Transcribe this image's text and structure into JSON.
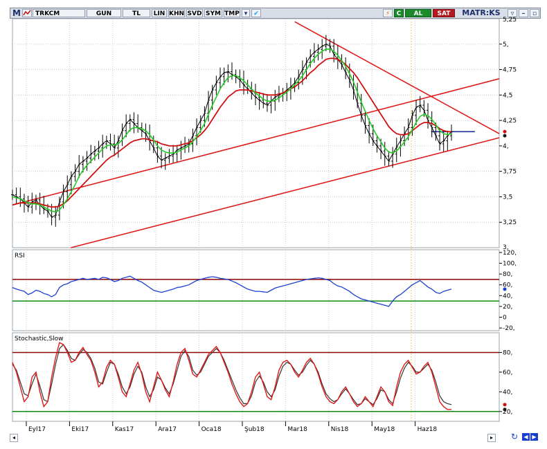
{
  "toolbar": {
    "logo": "M",
    "symbol": "TRKCM",
    "period": "GUN",
    "currency": "TL",
    "scale_lin": "LIN",
    "khn": "KHN",
    "svd": "SVD",
    "sym": "SYM",
    "tmp": "TMP",
    "c_label": "C",
    "buy": "AL",
    "sell": "SAT",
    "brand": "MATR:KS"
  },
  "panels": {
    "rsi_label": "RSI",
    "stoch_label": "Stochastic,Slow"
  },
  "colors": {
    "price": "#000000",
    "ma_fast": "#22cc22",
    "ma_slow": "#d01010",
    "trend": "#e01a1a",
    "rsi": "#1a3fd0",
    "level_high": "#8b0000",
    "level_low": "#118a11",
    "stoch_k": "#e01a1a",
    "stoch_d": "#333333",
    "grid": "#c8c8c8"
  },
  "chart_data": [
    {
      "type": "line",
      "ylim": [
        3.0,
        5.25
      ],
      "y_ticks": [
        "5,",
        "4,75",
        "4,5",
        "4,25",
        "4,",
        "3,75",
        "3,5",
        "3,25"
      ],
      "y_top_partial": "5,25",
      "y_bottom_partial": "3,",
      "x_labels": [
        "Eyl17",
        "Eki17",
        "Kas17",
        "Ara17",
        "Oca18",
        "Şub18",
        "Mar18",
        "Nis18",
        "May18",
        "Haz18"
      ],
      "close_series": [
        3.52,
        3.5,
        3.48,
        3.44,
        3.4,
        3.45,
        3.47,
        3.42,
        3.38,
        3.36,
        3.3,
        3.32,
        3.45,
        3.55,
        3.62,
        3.7,
        3.75,
        3.82,
        3.85,
        3.88,
        3.92,
        3.95,
        3.98,
        4.02,
        4.05,
        4.02,
        3.98,
        4.05,
        4.15,
        4.22,
        4.26,
        4.22,
        4.18,
        4.15,
        4.12,
        4.05,
        3.98,
        3.9,
        3.86,
        3.88,
        3.9,
        3.92,
        3.96,
        3.98,
        4.0,
        4.02,
        4.1,
        4.18,
        4.25,
        4.32,
        4.45,
        4.55,
        4.62,
        4.68,
        4.72,
        4.73,
        4.7,
        4.68,
        4.65,
        4.6,
        4.56,
        4.52,
        4.48,
        4.45,
        4.42,
        4.4,
        4.44,
        4.48,
        4.5,
        4.52,
        4.55,
        4.58,
        4.62,
        4.68,
        4.75,
        4.82,
        4.88,
        4.92,
        4.95,
        4.98,
        5.0,
        4.98,
        4.9,
        4.85,
        4.8,
        4.72,
        4.65,
        4.55,
        4.42,
        4.3,
        4.2,
        4.12,
        4.05,
        4.0,
        3.95,
        3.9,
        3.85,
        3.92,
        3.99,
        4.05,
        4.12,
        4.18,
        4.3,
        4.38,
        4.4,
        4.35,
        4.25,
        4.18,
        4.1,
        4.02,
        4.05,
        4.1,
        4.14
      ],
      "ma_fast_series": [
        3.5,
        3.49,
        3.48,
        3.46,
        3.44,
        3.43,
        3.43,
        3.42,
        3.4,
        3.38,
        3.36,
        3.35,
        3.37,
        3.42,
        3.48,
        3.55,
        3.62,
        3.7,
        3.76,
        3.81,
        3.85,
        3.89,
        3.93,
        3.97,
        4.0,
        4.01,
        4.01,
        4.02,
        4.06,
        4.11,
        4.16,
        4.18,
        4.18,
        4.17,
        4.15,
        4.11,
        4.06,
        4.0,
        3.96,
        3.94,
        3.93,
        3.93,
        3.94,
        3.96,
        3.98,
        4.0,
        4.04,
        4.09,
        4.15,
        4.22,
        4.31,
        4.4,
        4.48,
        4.56,
        4.62,
        4.67,
        4.69,
        4.69,
        4.67,
        4.64,
        4.6,
        4.56,
        4.52,
        4.49,
        4.46,
        4.44,
        4.44,
        4.45,
        4.47,
        4.5,
        4.53,
        4.56,
        4.6,
        4.64,
        4.69,
        4.75,
        4.81,
        4.86,
        4.9,
        4.93,
        4.95,
        4.95,
        4.93,
        4.89,
        4.84,
        4.78,
        4.71,
        4.63,
        4.53,
        4.43,
        4.34,
        4.25,
        4.17,
        4.1,
        4.04,
        3.98,
        3.94,
        3.93,
        3.95,
        3.99,
        4.04,
        4.09,
        4.16,
        4.23,
        4.29,
        4.31,
        4.3,
        4.26,
        4.21,
        4.15,
        4.12,
        4.11,
        4.12
      ],
      "ma_slow_series": [
        3.42,
        3.43,
        3.44,
        3.44,
        3.44,
        3.44,
        3.44,
        3.43,
        3.42,
        3.41,
        3.4,
        3.4,
        3.41,
        3.43,
        3.46,
        3.5,
        3.54,
        3.58,
        3.62,
        3.66,
        3.7,
        3.74,
        3.78,
        3.82,
        3.86,
        3.89,
        3.91,
        3.94,
        3.97,
        4.0,
        4.03,
        4.05,
        4.06,
        4.07,
        4.07,
        4.06,
        4.05,
        4.04,
        4.02,
        4.01,
        4.0,
        4.0,
        4.0,
        4.01,
        4.02,
        4.03,
        4.05,
        4.08,
        4.11,
        4.15,
        4.2,
        4.26,
        4.32,
        4.38,
        4.43,
        4.48,
        4.51,
        4.54,
        4.55,
        4.55,
        4.55,
        4.54,
        4.53,
        4.52,
        4.51,
        4.5,
        4.5,
        4.5,
        4.51,
        4.52,
        4.54,
        4.56,
        4.58,
        4.61,
        4.64,
        4.68,
        4.72,
        4.75,
        4.79,
        4.82,
        4.85,
        4.86,
        4.86,
        4.85,
        4.83,
        4.8,
        4.76,
        4.72,
        4.67,
        4.61,
        4.55,
        4.49,
        4.43,
        4.37,
        4.31,
        4.25,
        4.19,
        4.15,
        4.12,
        4.11,
        4.11,
        4.12,
        4.15,
        4.18,
        4.21,
        4.23,
        4.23,
        4.22,
        4.2,
        4.17,
        4.15,
        4.14,
        4.14
      ],
      "trendlines": [
        {
          "x": [
            0,
            1
          ],
          "y": [
            3.42,
            4.66
          ]
        },
        {
          "x": [
            0.12,
            1
          ],
          "y": [
            3.0,
            4.08
          ]
        },
        {
          "x": [
            0.58,
            1
          ],
          "y": [
            5.22,
            4.12
          ]
        },
        {
          "x": [
            0.86,
            0.95
          ],
          "y": [
            4.14,
            4.14
          ]
        }
      ],
      "last_values": [
        4.14,
        4.1
      ]
    },
    {
      "type": "line",
      "ylim": [
        -25,
        125
      ],
      "y_ticks": [
        "120,",
        "100,",
        "80,",
        "60,",
        "40,",
        "20,",
        "0",
        "-20,"
      ],
      "levels": [
        70,
        30
      ],
      "rsi_series": [
        55,
        52,
        50,
        48,
        42,
        45,
        50,
        48,
        44,
        42,
        38,
        42,
        55,
        60,
        62,
        66,
        68,
        70,
        72,
        70,
        71,
        72,
        70,
        74,
        73,
        70,
        66,
        68,
        72,
        74,
        76,
        72,
        68,
        65,
        60,
        55,
        50,
        48,
        46,
        48,
        50,
        52,
        55,
        56,
        58,
        60,
        64,
        68,
        70,
        72,
        74,
        75,
        74,
        72,
        71,
        70,
        67,
        64,
        60,
        56,
        52,
        50,
        48,
        48,
        47,
        46,
        50,
        54,
        56,
        58,
        60,
        62,
        64,
        66,
        68,
        70,
        71,
        72,
        73,
        72,
        70,
        68,
        62,
        58,
        56,
        52,
        48,
        42,
        38,
        34,
        32,
        30,
        28,
        26,
        24,
        22,
        20,
        30,
        38,
        42,
        48,
        54,
        60,
        64,
        68,
        62,
        56,
        52,
        46,
        44,
        48,
        50,
        52
      ],
      "last_value": 52
    },
    {
      "type": "line",
      "ylim": [
        10,
        100
      ],
      "y_ticks": [
        "80,",
        "60,",
        "40,",
        "20,"
      ],
      "levels": [
        80,
        20
      ],
      "k_series": [
        70,
        60,
        45,
        30,
        35,
        55,
        60,
        40,
        25,
        30,
        55,
        75,
        90,
        88,
        80,
        70,
        72,
        80,
        85,
        78,
        72,
        60,
        45,
        50,
        65,
        72,
        68,
        55,
        40,
        35,
        48,
        62,
        70,
        58,
        40,
        30,
        45,
        60,
        52,
        42,
        35,
        50,
        68,
        80,
        84,
        72,
        58,
        55,
        62,
        70,
        78,
        82,
        86,
        80,
        70,
        60,
        48,
        38,
        30,
        25,
        28,
        40,
        55,
        60,
        48,
        35,
        32,
        45,
        62,
        70,
        72,
        68,
        60,
        55,
        62,
        70,
        74,
        68,
        58,
        45,
        35,
        30,
        28,
        32,
        40,
        45,
        38,
        30,
        25,
        28,
        35,
        30,
        25,
        35,
        45,
        40,
        30,
        26,
        45,
        60,
        68,
        72,
        65,
        58,
        60,
        66,
        70,
        60,
        45,
        30,
        25,
        22,
        22
      ],
      "d_series": [
        68,
        62,
        50,
        38,
        36,
        48,
        58,
        46,
        32,
        30,
        48,
        68,
        84,
        88,
        82,
        74,
        72,
        78,
        83,
        80,
        74,
        64,
        50,
        48,
        60,
        70,
        68,
        58,
        45,
        38,
        45,
        58,
        66,
        60,
        45,
        35,
        42,
        55,
        52,
        44,
        38,
        48,
        62,
        76,
        82,
        76,
        62,
        57,
        60,
        68,
        76,
        80,
        84,
        80,
        72,
        62,
        52,
        42,
        34,
        28,
        28,
        36,
        50,
        56,
        50,
        40,
        35,
        42,
        56,
        66,
        70,
        68,
        62,
        57,
        60,
        67,
        72,
        68,
        60,
        48,
        38,
        33,
        30,
        32,
        38,
        43,
        38,
        32,
        27,
        28,
        33,
        30,
        27,
        33,
        42,
        40,
        32,
        28,
        40,
        54,
        64,
        70,
        66,
        60,
        60,
        64,
        68,
        62,
        50,
        36,
        30,
        28,
        27
      ],
      "last_values": [
        27,
        22
      ]
    }
  ]
}
